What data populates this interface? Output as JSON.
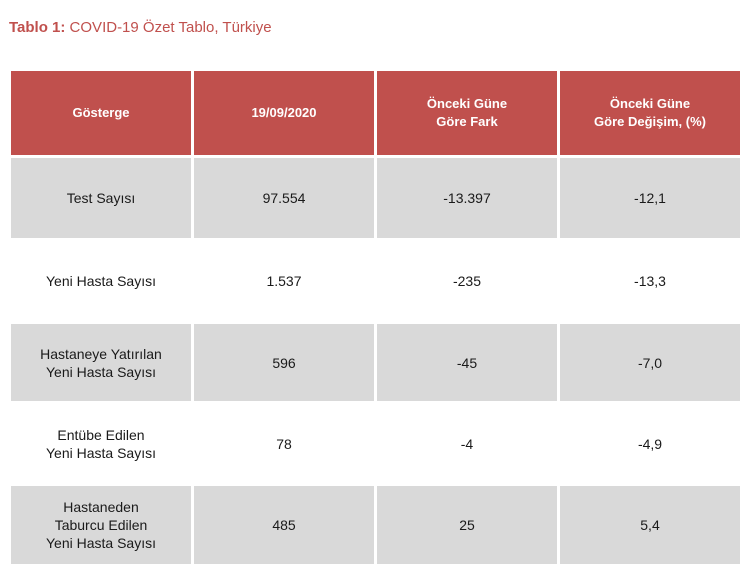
{
  "caption": {
    "label": "Tablo 1:",
    "text": " COVID-19 Özet Tablo, Türkiye"
  },
  "table": {
    "headers": [
      "Gösterge",
      "19/09/2020",
      "Önceki Güne\nGöre Fark",
      "Önceki Güne\nGöre Değişim, (%)"
    ],
    "rows": [
      [
        "Test Sayısı",
        "97.554",
        "-13.397",
        "-12,1"
      ],
      [
        "Yeni Hasta Sayısı",
        "1.537",
        "-235",
        "-13,3"
      ],
      [
        "Hastaneye Yatırılan\nYeni Hasta Sayısı",
        "596",
        "-45",
        "-7,0"
      ],
      [
        "Entübe Edilen\nYeni Hasta Sayısı",
        "78",
        "-4",
        "-4,9"
      ],
      [
        "Hastaneden\nTaburcu Edilen\nYeni Hasta Sayısı",
        "485",
        "25",
        "5,4"
      ]
    ]
  },
  "colors": {
    "header_bg": "#c0504d",
    "shaded_row_bg": "#d9d9d9",
    "caption_color": "#c0504d"
  }
}
